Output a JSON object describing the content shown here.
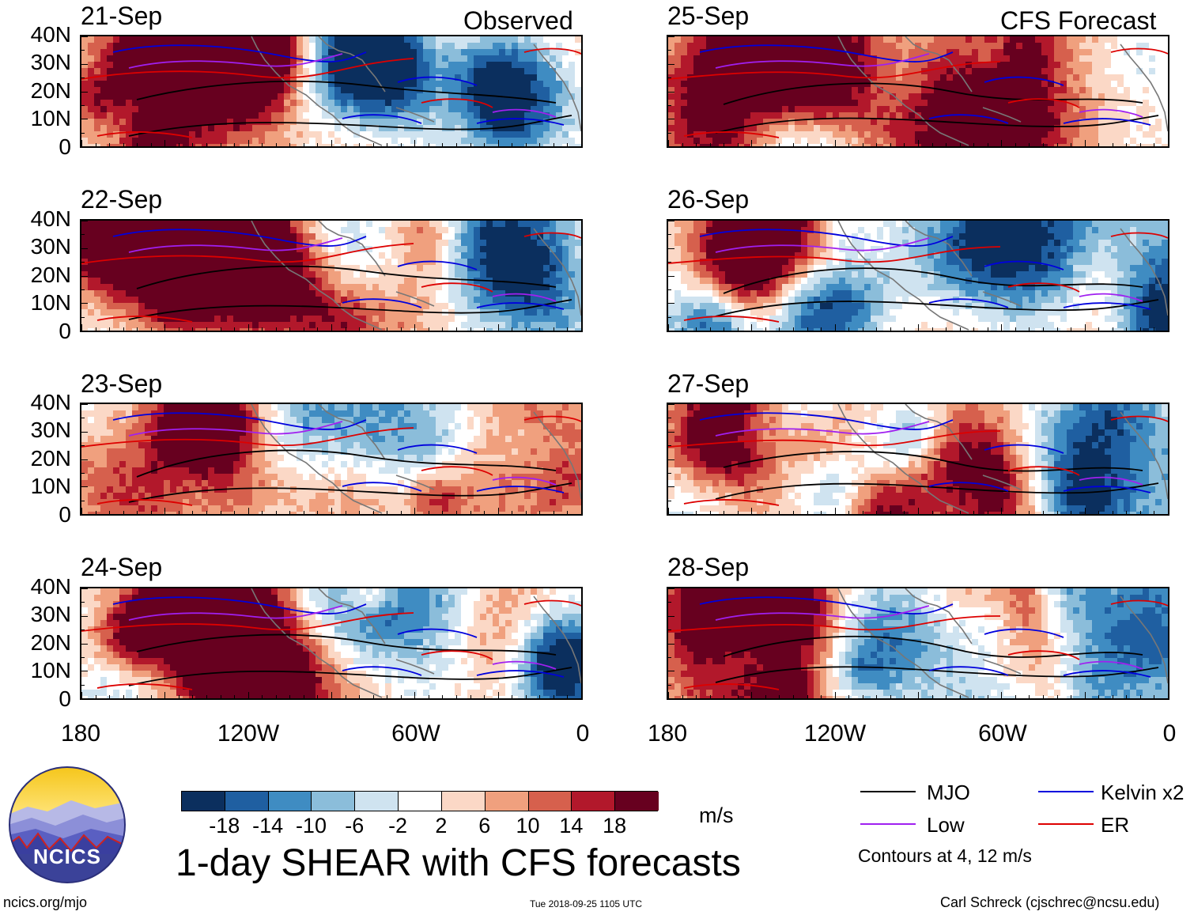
{
  "headers": {
    "left": "Observed",
    "right": "CFS Forecast"
  },
  "chart_data": {
    "type": "heatmap",
    "title": "1-day SHEAR with CFS forecasts",
    "units": "m/s",
    "lat_labels": [
      "40N",
      "30N",
      "20N",
      "10N",
      "0"
    ],
    "lon_labels": [
      "180",
      "120W",
      "60W",
      "0"
    ],
    "panels": [
      {
        "date": "21-Sep",
        "source": "Observed"
      },
      {
        "date": "22-Sep",
        "source": "Observed"
      },
      {
        "date": "23-Sep",
        "source": "Observed"
      },
      {
        "date": "24-Sep",
        "source": "Observed"
      },
      {
        "date": "25-Sep",
        "source": "CFS Forecast"
      },
      {
        "date": "26-Sep",
        "source": "CFS Forecast"
      },
      {
        "date": "27-Sep",
        "source": "CFS Forecast"
      },
      {
        "date": "28-Sep",
        "source": "CFS Forecast"
      }
    ],
    "colorbar": {
      "colors": [
        "#0b2f5e",
        "#1f5fa1",
        "#3f8cc2",
        "#8bbdda",
        "#cfe3f0",
        "#ffffff",
        "#fbd8c6",
        "#f0a07e",
        "#d6604d",
        "#b2182b",
        "#67001f"
      ],
      "labels": [
        "-18",
        "-14",
        "-10",
        "-6",
        "-2",
        "2",
        "6",
        "10",
        "14",
        "18"
      ]
    },
    "legend": [
      {
        "label": "MJO",
        "color": "#000000"
      },
      {
        "label": "Kelvin x2",
        "color": "#0000dd"
      },
      {
        "label": "Low",
        "color": "#a020f0"
      },
      {
        "label": "ER",
        "color": "#dd0000"
      }
    ],
    "note": "Contours at 4, 12 m/s"
  },
  "logo": {
    "text": "NCICS"
  },
  "footer": {
    "site": "ncics.org/mjo",
    "timestamp": "Tue 2018-09-25 1105 UTC",
    "credit": "Carl Schreck (cjschrec@ncsu.edu)"
  }
}
